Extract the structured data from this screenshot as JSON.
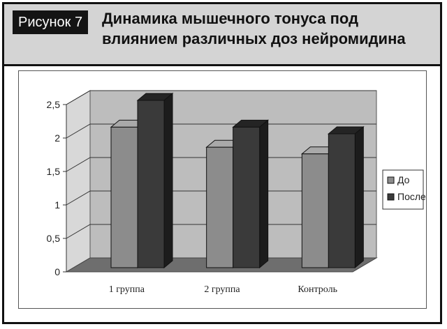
{
  "figure_label": "Рисунок 7",
  "title": "Динамика мышечного тонуса под влиянием различных доз нейромидина",
  "colors": {
    "До": "#8c8c8c",
    "После": "#3a3a3a",
    "wall": "#bdbdbd",
    "floor": "#6e6e6e"
  },
  "chart_data": {
    "type": "bar",
    "categories": [
      "1 группа",
      "2 группа",
      "Контроль"
    ],
    "series": [
      {
        "name": "До",
        "values": [
          2.1,
          1.8,
          1.7
        ]
      },
      {
        "name": "После",
        "values": [
          2.5,
          2.1,
          2.0
        ]
      }
    ],
    "ylim": [
      0,
      2.5
    ],
    "yticks": [
      "0",
      "0,5",
      "1",
      "1,5",
      "2",
      "2,5"
    ],
    "grid": true,
    "legend": "right",
    "style": "3d-clustered-column"
  }
}
